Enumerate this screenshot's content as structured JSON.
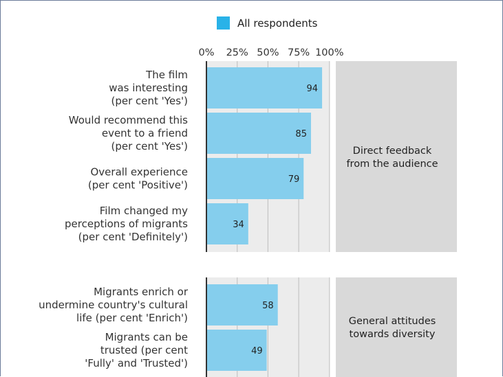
{
  "chart_data": {
    "type": "bar",
    "orientation": "horizontal",
    "legend": {
      "position": "top",
      "entries": [
        {
          "name": "All respondents",
          "color": "#29b2e8"
        }
      ]
    },
    "xlim": [
      0,
      100
    ],
    "x_ticks": [
      "0%",
      "25%",
      "50%",
      "75%",
      "100%"
    ],
    "bar_color": "#85ceed",
    "panel_color": "#ececec",
    "annotation_color": "#d9d9d9",
    "groups": [
      {
        "name": "Direct feedback from the audience",
        "name_lines": [
          "Direct feedback",
          "from the audience"
        ],
        "bars": [
          {
            "label_lines": [
              "The film",
              "was interesting",
              "(per cent 'Yes')"
            ],
            "value": 94
          },
          {
            "label_lines": [
              "Would recommend this",
              "event to a friend",
              "(per cent 'Yes')"
            ],
            "value": 85
          },
          {
            "label_lines": [
              "Overall experience",
              "(per cent 'Positive')"
            ],
            "value": 79
          },
          {
            "label_lines": [
              "Film changed my",
              "perceptions of migrants",
              "(per cent 'Definitely')"
            ],
            "value": 34
          }
        ]
      },
      {
        "name": "General attitudes towards diversity",
        "name_lines": [
          "General attitudes",
          "towards diversity"
        ],
        "bars": [
          {
            "label_lines": [
              "Migrants enrich or",
              "undermine country's cultural",
              "life (per cent 'Enrich')"
            ],
            "value": 58
          },
          {
            "label_lines": [
              "Migrants can be",
              "trusted (per cent",
              "'Fully' and 'Trusted')"
            ],
            "value": 49
          }
        ]
      }
    ]
  }
}
